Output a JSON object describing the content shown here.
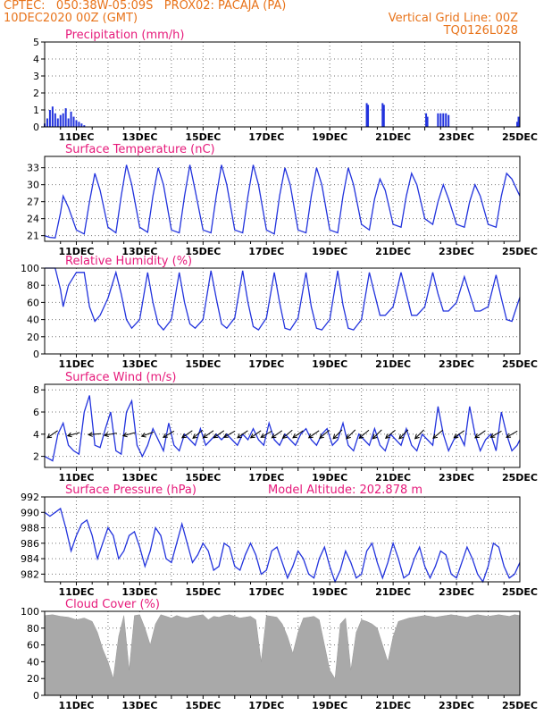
{
  "header": {
    "line1": "CPTEC:   050:38W-05:09S   PROX02: PACAJA (PA)",
    "line2": "10DEC2020 00Z (GMT)",
    "right1": "Vertical Grid Line: 00Z",
    "right2": "TQ0126L028"
  },
  "colors": {
    "header": "#e8731a",
    "title": "#e6197a",
    "line": "#2233dd",
    "cloud": "#a9a9a9"
  },
  "chart_data": [
    {
      "type": "bar",
      "title": "Precipitation (mm/h)",
      "x_range_hours": [
        0,
        360
      ],
      "xtick_labels": [
        "11DEC",
        "13DEC",
        "15DEC",
        "17DEC",
        "19DEC",
        "21DEC",
        "23DEC",
        "25DEC"
      ],
      "ylim": [
        0,
        5
      ],
      "yticks": [
        0,
        1,
        2,
        3,
        4,
        5
      ],
      "x": [
        0,
        2,
        4,
        6,
        8,
        10,
        12,
        14,
        16,
        18,
        20,
        22,
        24,
        26,
        28,
        30,
        244,
        245,
        256,
        257,
        289,
        290,
        298,
        300,
        302,
        304,
        306,
        358,
        359
      ],
      "values": [
        0.2,
        0.5,
        1.0,
        1.2,
        0.8,
        0.5,
        0.7,
        0.8,
        1.1,
        0.5,
        0.9,
        0.6,
        0.4,
        0.3,
        0.2,
        0.1,
        1.4,
        1.3,
        1.4,
        1.3,
        0.8,
        0.6,
        0.8,
        0.8,
        0.8,
        0.8,
        0.7,
        0.3,
        0.6
      ]
    },
    {
      "type": "line",
      "title": "Surface Temperature (nC)",
      "ylim": [
        20,
        35
      ],
      "yticks": [
        21,
        24,
        27,
        30,
        33
      ],
      "x": [
        0,
        4,
        8,
        12,
        14,
        18,
        24,
        30,
        34,
        38,
        42,
        48,
        54,
        58,
        62,
        66,
        72,
        78,
        82,
        86,
        90,
        96,
        102,
        106,
        110,
        114,
        120,
        126,
        130,
        134,
        138,
        144,
        150,
        154,
        158,
        162,
        168,
        174,
        178,
        182,
        186,
        192,
        198,
        202,
        206,
        210,
        216,
        222,
        226,
        230,
        234,
        240,
        246,
        250,
        254,
        258,
        264,
        270,
        274,
        278,
        282,
        288,
        294,
        298,
        302,
        306,
        312,
        318,
        322,
        326,
        330,
        336,
        342,
        346,
        350,
        354,
        360
      ],
      "values": [
        21,
        20.7,
        20.6,
        25,
        28,
        26,
        22,
        21.3,
        27,
        32,
        29,
        22.5,
        21.5,
        28,
        33.5,
        30,
        22.5,
        21.6,
        28,
        33,
        30,
        22,
        21.5,
        28,
        33.5,
        29,
        22,
        21.5,
        28,
        33.5,
        30,
        22,
        21.5,
        28,
        33.5,
        30,
        22,
        21.3,
        28,
        33,
        30,
        22,
        21.5,
        28,
        33,
        30,
        22,
        21.5,
        28,
        33,
        30,
        23,
        22,
        27.5,
        31,
        29,
        23,
        22.5,
        28,
        32,
        30,
        24,
        23,
        27,
        30,
        27.5,
        23,
        22.5,
        27,
        30,
        28,
        23,
        22.5,
        28,
        32,
        31,
        28
      ]
    },
    {
      "type": "line",
      "title": "Relative Humidity (%)",
      "ylim": [
        0,
        100
      ],
      "yticks": [
        0,
        20,
        40,
        60,
        80,
        100
      ],
      "x": [
        0,
        8,
        12,
        14,
        18,
        24,
        30,
        34,
        38,
        42,
        48,
        54,
        58,
        62,
        66,
        72,
        78,
        82,
        86,
        90,
        96,
        102,
        106,
        110,
        114,
        120,
        126,
        130,
        134,
        138,
        144,
        150,
        154,
        158,
        162,
        168,
        174,
        178,
        182,
        186,
        192,
        198,
        202,
        206,
        210,
        216,
        222,
        226,
        230,
        234,
        240,
        246,
        250,
        254,
        258,
        264,
        270,
        274,
        278,
        282,
        288,
        294,
        298,
        302,
        306,
        312,
        318,
        322,
        326,
        330,
        336,
        342,
        346,
        350,
        354,
        360
      ],
      "values": [
        100,
        100,
        75,
        55,
        80,
        95,
        95,
        55,
        38,
        45,
        65,
        95,
        70,
        40,
        30,
        40,
        95,
        60,
        35,
        28,
        40,
        95,
        60,
        35,
        30,
        40,
        97,
        65,
        35,
        30,
        42,
        97,
        60,
        32,
        28,
        42,
        95,
        60,
        30,
        28,
        42,
        95,
        55,
        30,
        28,
        40,
        97,
        57,
        30,
        28,
        40,
        95,
        70,
        45,
        45,
        55,
        95,
        70,
        45,
        45,
        55,
        95,
        70,
        50,
        50,
        60,
        90,
        70,
        50,
        50,
        55,
        92,
        65,
        40,
        38,
        66
      ]
    },
    {
      "type": "line",
      "title": "Surface Wind (m/s)",
      "ylim": [
        1,
        8.5
      ],
      "yticks": [
        2,
        4,
        6,
        8
      ],
      "x": [
        0,
        6,
        10,
        14,
        18,
        22,
        26,
        30,
        34,
        38,
        42,
        46,
        50,
        54,
        58,
        62,
        66,
        70,
        74,
        78,
        82,
        86,
        90,
        94,
        98,
        102,
        106,
        110,
        114,
        118,
        122,
        126,
        130,
        134,
        138,
        142,
        146,
        150,
        154,
        158,
        162,
        166,
        170,
        174,
        178,
        182,
        186,
        190,
        194,
        198,
        202,
        206,
        210,
        214,
        218,
        222,
        226,
        230,
        234,
        238,
        242,
        246,
        250,
        254,
        258,
        262,
        266,
        270,
        274,
        278,
        282,
        286,
        290,
        294,
        298,
        302,
        306,
        310,
        314,
        318,
        322,
        326,
        330,
        334,
        338,
        342,
        346,
        350,
        354,
        358,
        360
      ],
      "values": [
        2,
        1.6,
        4,
        5,
        3,
        2.5,
        2.2,
        6,
        7.5,
        3,
        2.8,
        4.5,
        6,
        2.5,
        2.2,
        6,
        7,
        3,
        2,
        3,
        4.5,
        3.5,
        2.5,
        5,
        3,
        2.5,
        4,
        3.5,
        3,
        4.5,
        3,
        3.5,
        4,
        3.5,
        4,
        3.5,
        3,
        4,
        3.5,
        4.5,
        3.5,
        3,
        5,
        3.5,
        3,
        4,
        3.5,
        3,
        4,
        4.5,
        3.5,
        3,
        4,
        4.5,
        3,
        3.5,
        5,
        3,
        2.5,
        4,
        3.5,
        3,
        4.5,
        3,
        2.5,
        4,
        3.5,
        3,
        4.5,
        3,
        2.5,
        4,
        3.5,
        3,
        6.5,
        4,
        2.5,
        3.5,
        4,
        3,
        6.5,
        4,
        2.5,
        3.5,
        4,
        2.5,
        6,
        4,
        2.5,
        3,
        3.5
      ],
      "wind_arrows": {
        "x": [
          6,
          22,
          38,
          50,
          64,
          78,
          94,
          108,
          116,
          124,
          132,
          140,
          150,
          160,
          168,
          176,
          184,
          192,
          204,
          212,
          222,
          232,
          242,
          252,
          262,
          272,
          284,
          298,
          314,
          330,
          342,
          354
        ],
        "direction_deg_to": [
          215,
          195,
          185,
          190,
          195,
          200,
          210,
          215,
          220,
          215,
          215,
          210,
          215,
          215,
          210,
          215,
          220,
          215,
          215,
          220,
          225,
          225,
          220,
          225,
          220,
          225,
          225,
          220,
          215,
          215,
          210,
          210
        ]
      }
    },
    {
      "type": "line",
      "title": "Surface Pressure (hPa)",
      "annotation": "Model Altitude: 202.878 m",
      "ylim": [
        981,
        992
      ],
      "yticks": [
        982,
        984,
        986,
        988,
        990,
        992
      ],
      "x": [
        0,
        4,
        8,
        12,
        16,
        20,
        24,
        28,
        32,
        36,
        40,
        44,
        48,
        52,
        56,
        60,
        64,
        68,
        72,
        76,
        80,
        84,
        88,
        92,
        96,
        100,
        104,
        108,
        112,
        116,
        120,
        124,
        128,
        132,
        136,
        140,
        144,
        148,
        152,
        156,
        160,
        164,
        168,
        172,
        176,
        180,
        184,
        188,
        192,
        196,
        200,
        204,
        208,
        212,
        216,
        220,
        224,
        228,
        232,
        236,
        240,
        244,
        248,
        252,
        256,
        260,
        264,
        268,
        272,
        276,
        280,
        284,
        288,
        292,
        296,
        300,
        304,
        308,
        312,
        316,
        320,
        324,
        328,
        332,
        336,
        340,
        344,
        348,
        352,
        356,
        360
      ],
      "values": [
        990,
        989.5,
        990,
        990.5,
        988,
        985,
        987,
        988.5,
        989,
        987,
        984,
        986,
        988,
        987,
        984,
        985,
        987,
        987.5,
        985.5,
        983,
        985,
        988,
        987,
        984,
        983.5,
        986,
        988.5,
        986,
        983.5,
        984.5,
        986,
        985,
        982.5,
        983,
        986,
        985.5,
        983,
        982.5,
        984.5,
        986,
        984.5,
        982,
        982.5,
        985,
        985.5,
        983.5,
        981.5,
        983,
        985,
        984,
        982,
        981.5,
        984,
        985.5,
        983,
        981,
        982.5,
        985,
        983.5,
        981.5,
        982,
        985,
        986,
        983.5,
        981.5,
        983.5,
        986,
        984,
        981.5,
        982,
        984,
        985.5,
        983,
        981.5,
        983,
        985,
        984.5,
        982,
        981.5,
        983.5,
        985.5,
        984,
        982,
        981,
        983,
        986,
        985.5,
        983,
        981.5,
        982,
        983.5
      ]
    },
    {
      "type": "area",
      "title": "Cloud Cover (%)",
      "ylim": [
        0,
        100
      ],
      "yticks": [
        0,
        20,
        40,
        60,
        80,
        100
      ],
      "x": [
        0,
        6,
        12,
        18,
        24,
        30,
        36,
        40,
        44,
        48,
        52,
        56,
        60,
        64,
        68,
        72,
        76,
        80,
        84,
        88,
        92,
        96,
        100,
        104,
        108,
        112,
        116,
        120,
        124,
        128,
        132,
        136,
        140,
        144,
        148,
        152,
        156,
        160,
        164,
        168,
        172,
        176,
        180,
        184,
        188,
        192,
        196,
        200,
        204,
        208,
        212,
        216,
        220,
        224,
        228,
        232,
        236,
        240,
        244,
        248,
        252,
        256,
        260,
        264,
        268,
        272,
        276,
        280,
        284,
        288,
        292,
        296,
        300,
        304,
        308,
        312,
        316,
        320,
        324,
        328,
        332,
        336,
        340,
        344,
        348,
        352,
        356,
        360
      ],
      "values": [
        95,
        96,
        94,
        93,
        90,
        92,
        88,
        75,
        55,
        40,
        20,
        70,
        95,
        30,
        95,
        96,
        80,
        60,
        85,
        96,
        94,
        92,
        95,
        93,
        92,
        94,
        95,
        96,
        90,
        94,
        93,
        95,
        96,
        94,
        92,
        93,
        94,
        90,
        40,
        95,
        94,
        93,
        85,
        70,
        50,
        75,
        92,
        93,
        94,
        90,
        60,
        30,
        20,
        85,
        92,
        30,
        75,
        90,
        88,
        85,
        80,
        60,
        40,
        70,
        88,
        90,
        92,
        93,
        94,
        95,
        94,
        93,
        94,
        95,
        96,
        95,
        94,
        93,
        95,
        96,
        95,
        94,
        95,
        96,
        95,
        94,
        96,
        95
      ]
    }
  ]
}
